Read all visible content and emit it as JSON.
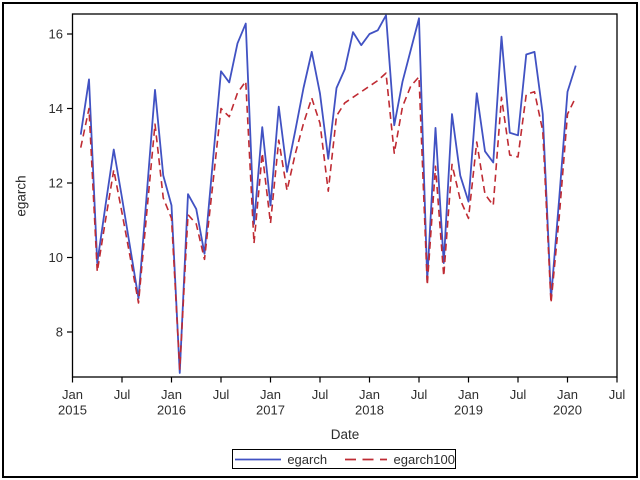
{
  "chart_data": {
    "type": "line",
    "title": "",
    "xlabel": "Date",
    "ylabel": "egarch",
    "grid": false,
    "legend_position": "bottom",
    "axis_color": "#000000",
    "text_color": "#2e2e2e",
    "ylim": [
      6.8,
      16.55
    ],
    "y_ticks": [
      8,
      10,
      12,
      14,
      16
    ],
    "x_ticks": [
      {
        "label": "Jan",
        "year": "2015",
        "m": 0
      },
      {
        "label": "Jul",
        "year": "",
        "m": 6
      },
      {
        "label": "Jan",
        "year": "2016",
        "m": 12
      },
      {
        "label": "Jul",
        "year": "",
        "m": 18
      },
      {
        "label": "Jan",
        "year": "2017",
        "m": 24
      },
      {
        "label": "Jul",
        "year": "",
        "m": 30
      },
      {
        "label": "Jan",
        "year": "2018",
        "m": 36
      },
      {
        "label": "Jul",
        "year": "",
        "m": 42
      },
      {
        "label": "Jan",
        "year": "2019",
        "m": 48
      },
      {
        "label": "Jul",
        "year": "",
        "m": 54
      },
      {
        "label": "Jan",
        "year": "2020",
        "m": 60
      },
      {
        "label": "Jul",
        "year": "",
        "m": 66
      }
    ],
    "x_first_month_index": 1,
    "x": [
      "2015-02",
      "2015-03",
      "2015-04",
      "2015-05",
      "2015-06",
      "2015-07",
      "2015-08",
      "2015-09",
      "2015-10",
      "2015-11",
      "2015-12",
      "2016-01",
      "2016-02",
      "2016-03",
      "2016-04",
      "2016-05",
      "2016-06",
      "2016-07",
      "2016-08",
      "2016-09",
      "2016-10",
      "2016-11",
      "2016-12",
      "2017-01",
      "2017-02",
      "2017-03",
      "2017-04",
      "2017-05",
      "2017-06",
      "2017-07",
      "2017-08",
      "2017-09",
      "2017-10",
      "2017-11",
      "2017-12",
      "2018-01",
      "2018-02",
      "2018-03",
      "2018-04",
      "2018-05",
      "2018-06",
      "2018-07",
      "2018-08",
      "2018-09",
      "2018-10",
      "2018-11",
      "2018-12",
      "2019-01",
      "2019-02",
      "2019-03",
      "2019-04",
      "2019-05",
      "2019-06",
      "2019-07",
      "2019-08",
      "2019-09",
      "2019-10",
      "2019-11",
      "2019-12",
      "2020-01",
      "2020-02"
    ],
    "series": [
      {
        "name": "egarch",
        "color": "#4152C3",
        "style": "solid",
        "values": [
          13.3,
          14.78,
          9.85,
          11.4,
          12.9,
          11.6,
          10.25,
          8.9,
          11.7,
          14.5,
          12.2,
          11.4,
          6.9,
          11.7,
          11.3,
          10.1,
          12.55,
          15.0,
          14.7,
          15.75,
          16.28,
          10.9,
          13.5,
          11.4,
          14.05,
          12.3,
          13.4,
          14.55,
          15.52,
          14.4,
          12.65,
          14.55,
          15.05,
          16.05,
          15.7,
          16.0,
          16.1,
          16.5,
          13.55,
          14.72,
          15.57,
          16.42,
          9.4,
          13.48,
          9.85,
          13.85,
          12.2,
          11.5,
          14.41,
          12.85,
          12.55,
          15.93,
          13.35,
          13.28,
          15.45,
          15.52,
          13.85,
          8.9,
          11.6,
          14.45,
          15.15
        ]
      },
      {
        "name": "egarch100",
        "color": "#BF2B33",
        "style": "dashed",
        "values": [
          12.95,
          14.0,
          9.62,
          11.0,
          12.35,
          11.2,
          10.0,
          8.78,
          11.2,
          13.58,
          11.6,
          11.05,
          7.0,
          11.15,
          10.9,
          9.95,
          11.95,
          14.0,
          13.78,
          14.42,
          14.73,
          10.38,
          12.8,
          10.92,
          13.15,
          11.8,
          12.78,
          13.6,
          14.28,
          13.6,
          11.78,
          13.8,
          14.15,
          14.3,
          14.45,
          14.6,
          14.75,
          14.95,
          12.8,
          14.05,
          14.6,
          14.85,
          9.26,
          12.45,
          9.5,
          12.5,
          11.55,
          11.05,
          13.1,
          11.7,
          11.4,
          14.3,
          12.75,
          12.7,
          14.38,
          14.45,
          13.4,
          8.78,
          11.1,
          13.85,
          14.3
        ]
      }
    ]
  }
}
